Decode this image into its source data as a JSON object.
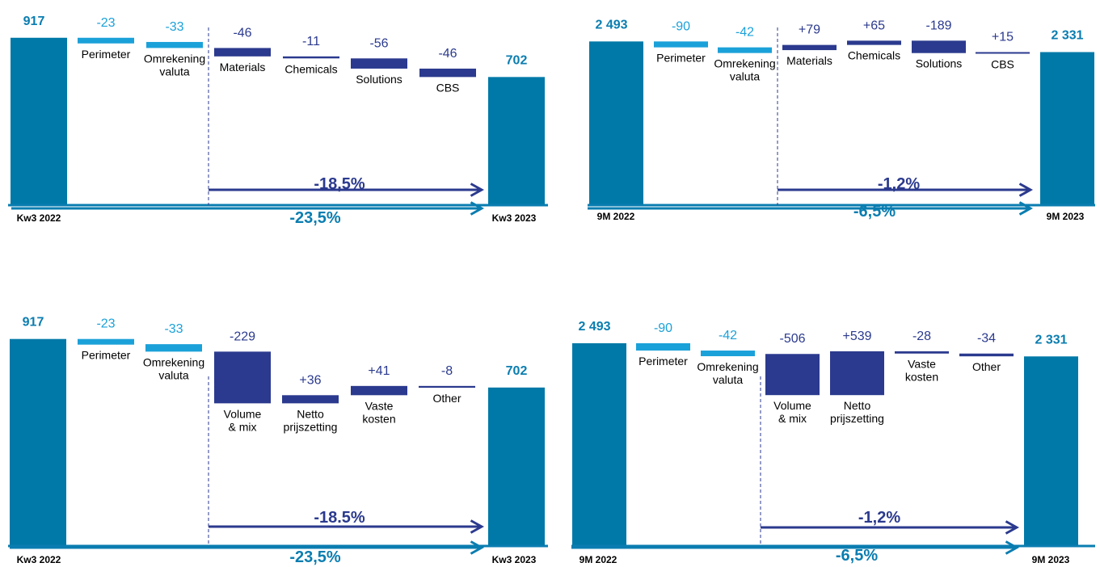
{
  "colors": {
    "total": "#0079a8",
    "scope": "#1ba1d9",
    "segment": "#2b3a8e",
    "axis": "#0a7db0",
    "arrow_inner": "#2b3a8e",
    "arrow_outer": "#0a7db0",
    "scope_text": "#1ba1d9",
    "segment_text": "#2b3a8e",
    "total_text": "#0a7db0"
  },
  "chart_data": [
    {
      "type": "waterfall",
      "start": {
        "label": "Kw3 2022",
        "value": 917,
        "value_text": "917"
      },
      "end": {
        "label": "Kw3 2023",
        "value": 702,
        "value_text": "702"
      },
      "steps": [
        {
          "label": [
            "Perimeter"
          ],
          "value": -23,
          "value_text": "-23",
          "kind": "scope"
        },
        {
          "label": [
            "Omrekening",
            "valuta"
          ],
          "value": -33,
          "value_text": "-33",
          "kind": "scope"
        },
        {
          "label": [
            "Materials"
          ],
          "value": -46,
          "value_text": "-46",
          "kind": "segment"
        },
        {
          "label": [
            "Chemicals"
          ],
          "value": -11,
          "value_text": "-11",
          "kind": "segment"
        },
        {
          "label": [
            "Solutions"
          ],
          "value": -56,
          "value_text": "-56",
          "kind": "segment"
        },
        {
          "label": [
            "CBS"
          ],
          "value": -46,
          "value_text": "-46",
          "kind": "segment"
        }
      ],
      "organic_change": "-18,5%",
      "total_change": "-23,5%"
    },
    {
      "type": "waterfall",
      "start": {
        "label": "9M 2022",
        "value": 2493,
        "value_text": "2 493"
      },
      "end": {
        "label": "9M 2023",
        "value": 2331,
        "value_text": "2 331"
      },
      "steps": [
        {
          "label": [
            "Perimeter"
          ],
          "value": -90,
          "value_text": "-90",
          "kind": "scope"
        },
        {
          "label": [
            "Omrekening",
            "valuta"
          ],
          "value": -42,
          "value_text": "-42",
          "kind": "scope"
        },
        {
          "label": [
            "Materials"
          ],
          "value": 79,
          "value_text": "+79",
          "kind": "segment"
        },
        {
          "label": [
            "Chemicals"
          ],
          "value": 65,
          "value_text": "+65",
          "kind": "segment"
        },
        {
          "label": [
            "Solutions"
          ],
          "value": -189,
          "value_text": "-189",
          "kind": "segment"
        },
        {
          "label": [
            "CBS"
          ],
          "value": 15,
          "value_text": "+15",
          "kind": "segment"
        }
      ],
      "organic_change": "-1,2%",
      "total_change": "-6,5%"
    },
    {
      "type": "waterfall",
      "start": {
        "label": "Kw3 2022",
        "value": 917,
        "value_text": "917"
      },
      "end": {
        "label": "Kw3 2023",
        "value": 702,
        "value_text": "702"
      },
      "steps": [
        {
          "label": [
            "Perimeter"
          ],
          "value": -23,
          "value_text": "-23",
          "kind": "scope"
        },
        {
          "label": [
            "Omrekening",
            "valuta"
          ],
          "value": -33,
          "value_text": "-33",
          "kind": "scope"
        },
        {
          "label": [
            "Volume",
            "& mix"
          ],
          "value": -229,
          "value_text": "-229",
          "kind": "segment"
        },
        {
          "label": [
            "Netto",
            "prijszetting"
          ],
          "value": 36,
          "value_text": "+36",
          "kind": "segment"
        },
        {
          "label": [
            "Vaste",
            "kosten"
          ],
          "value": 41,
          "value_text": "+41",
          "kind": "segment"
        },
        {
          "label": [
            "Other"
          ],
          "value": -8,
          "value_text": "-8",
          "kind": "segment"
        }
      ],
      "organic_change": "-18.5%",
      "total_change": "-23,5%"
    },
    {
      "type": "waterfall",
      "start": {
        "label": "9M 2022",
        "value": 2493,
        "value_text": "2 493"
      },
      "end": {
        "label": "9M 2023",
        "value": 2331,
        "value_text": "2 331"
      },
      "steps": [
        {
          "label": [
            "Perimeter"
          ],
          "value": -90,
          "value_text": "-90",
          "kind": "scope"
        },
        {
          "label": [
            "Omrekening",
            "valuta"
          ],
          "value": -42,
          "value_text": "-42",
          "kind": "scope"
        },
        {
          "label": [
            "Volume",
            "& mix"
          ],
          "value": -506,
          "value_text": "-506",
          "kind": "segment"
        },
        {
          "label": [
            "Netto",
            "prijszetting"
          ],
          "value": 539,
          "value_text": "+539",
          "kind": "segment"
        },
        {
          "label": [
            "Vaste",
            "kosten"
          ],
          "value": -28,
          "value_text": "-28",
          "kind": "segment"
        },
        {
          "label": [
            "Other"
          ],
          "value": -34,
          "value_text": "-34",
          "kind": "segment"
        }
      ],
      "organic_change": "-1,2%",
      "total_change": "-6,5%"
    }
  ]
}
